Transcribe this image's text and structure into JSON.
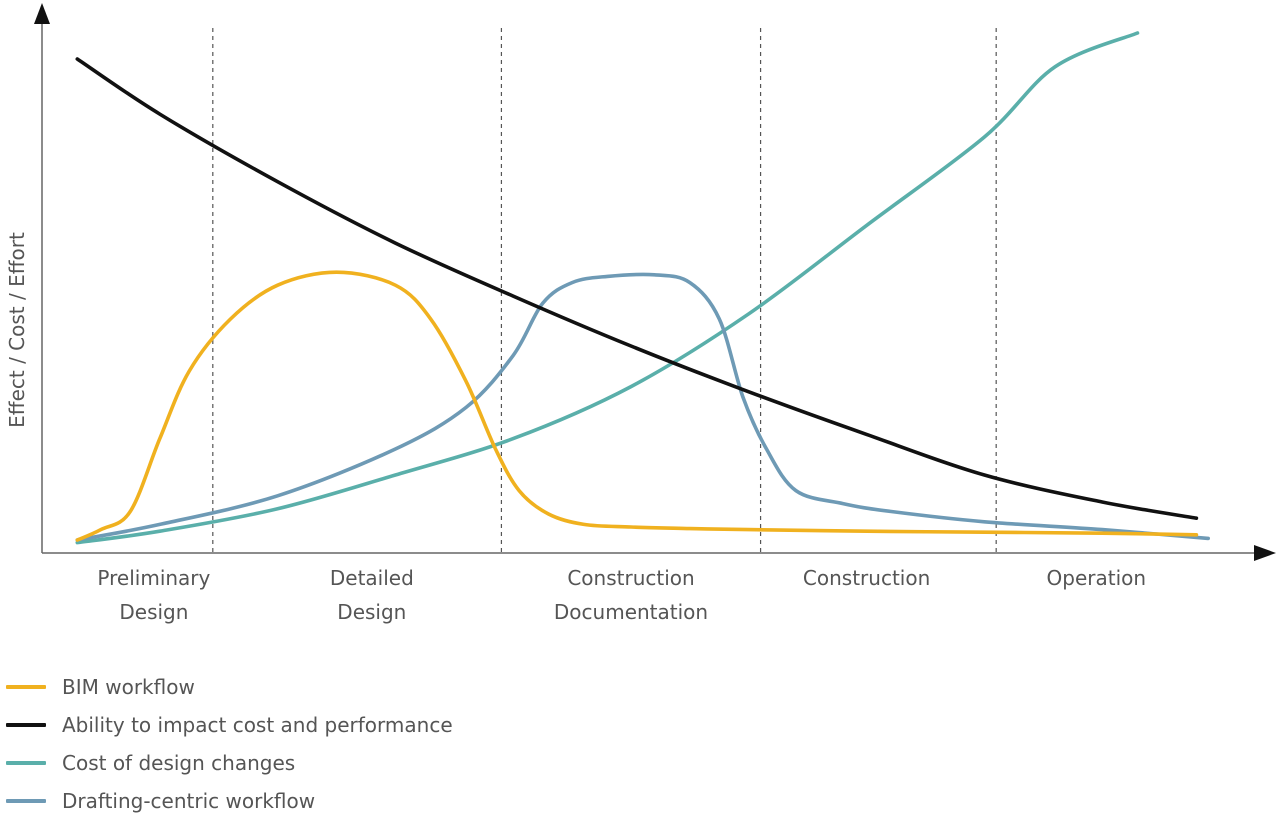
{
  "chart_data": {
    "type": "line",
    "title": "",
    "ylabel": "Effect / Cost / Effort",
    "xlabel": "",
    "grid": false,
    "xlim": [
      0,
      10
    ],
    "ylim": [
      0,
      10
    ],
    "categories": [
      {
        "lines": [
          "Preliminary",
          "Design"
        ]
      },
      {
        "lines": [
          "Detailed",
          "Design"
        ]
      },
      {
        "lines": [
          "Construction",
          "Documentation"
        ]
      },
      {
        "lines": [
          "Construction"
        ]
      },
      {
        "lines": [
          "Operation"
        ]
      }
    ],
    "category_centers": [
      0.95,
      2.8,
      5.0,
      7.0,
      8.95
    ],
    "phase_dividers": [
      1.45,
      3.9,
      6.1,
      8.1
    ],
    "series": [
      {
        "name": "BIM workflow",
        "color": "#F0B11F",
        "x": [
          0.3,
          0.5,
          0.75,
          1.0,
          1.25,
          1.6,
          2.0,
          2.5,
          3.0,
          3.3,
          3.6,
          3.85,
          4.05,
          4.3,
          4.6,
          5.0,
          5.5,
          6.0,
          7.0,
          8.0,
          9.0,
          9.8
        ],
        "y": [
          0.25,
          0.45,
          0.8,
          2.2,
          3.5,
          4.5,
          5.15,
          5.4,
          5.15,
          4.5,
          3.3,
          2.0,
          1.2,
          0.75,
          0.55,
          0.5,
          0.47,
          0.45,
          0.42,
          0.4,
          0.38,
          0.35
        ]
      },
      {
        "name": "Ability to impact cost and performance",
        "color": "#111111",
        "x": [
          0.3,
          1.0,
          2.0,
          3.0,
          4.0,
          5.0,
          6.0,
          7.0,
          8.0,
          9.0,
          9.8
        ],
        "y": [
          9.5,
          8.44,
          7.14,
          5.96,
          4.94,
          3.98,
          3.1,
          2.28,
          1.5,
          0.98,
          0.67
        ]
      },
      {
        "name": "Cost of design changes",
        "color": "#5AAFAA",
        "x": [
          0.3,
          1.0,
          2.0,
          3.0,
          4.0,
          5.0,
          6.0,
          7.0,
          8.0,
          8.6,
          9.3
        ],
        "y": [
          0.2,
          0.42,
          0.85,
          1.5,
          2.2,
          3.2,
          4.6,
          6.3,
          8.0,
          9.35,
          10.0
        ]
      },
      {
        "name": "Drafting-centric workflow",
        "color": "#6E9AB5",
        "x": [
          0.3,
          1.0,
          2.0,
          3.0,
          3.6,
          4.0,
          4.25,
          4.5,
          4.8,
          5.2,
          5.5,
          5.75,
          5.95,
          6.15,
          6.4,
          6.8,
          7.2,
          8.0,
          9.0,
          9.9
        ],
        "y": [
          0.25,
          0.55,
          1.1,
          2.0,
          2.8,
          3.8,
          4.8,
          5.2,
          5.32,
          5.35,
          5.2,
          4.5,
          3.0,
          2.0,
          1.2,
          0.95,
          0.8,
          0.6,
          0.45,
          0.28
        ]
      }
    ]
  }
}
